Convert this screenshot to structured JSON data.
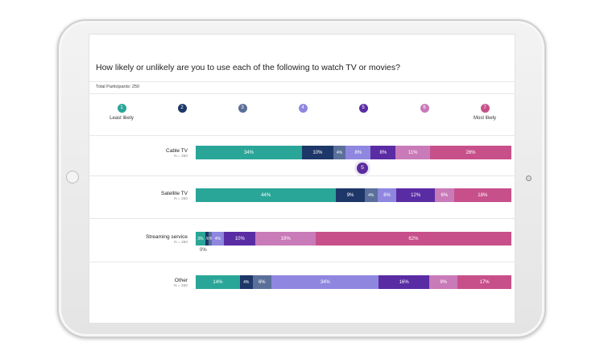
{
  "question": "How likely or unlikely are you to use each of the following to watch TV or movies?",
  "participants": "Total Participants: 250",
  "scale": [
    {
      "num": "1",
      "label": "Least likely",
      "color": "#2aa698"
    },
    {
      "num": "2",
      "label": "",
      "color": "#1d3768"
    },
    {
      "num": "3",
      "label": "",
      "color": "#5a6f99"
    },
    {
      "num": "4",
      "label": "",
      "color": "#8f86e0"
    },
    {
      "num": "5",
      "label": "",
      "color": "#5a2ca4"
    },
    {
      "num": "6",
      "label": "",
      "color": "#c97ab8"
    },
    {
      "num": "7",
      "label": "Most likely",
      "color": "#c7508a"
    }
  ],
  "tooltip": "5",
  "chart_data": {
    "type": "bar",
    "orientation": "horizontal-stacked-100",
    "categories": [
      "Cable TV",
      "Satellite TV",
      "Streaming service",
      "Other"
    ],
    "n_labels": [
      "N = 250",
      "N = 250",
      "N = 250",
      "N = 250"
    ],
    "series": [
      {
        "name": "1",
        "values": [
          34,
          44,
          3,
          14
        ],
        "labels": [
          "34%",
          "44%",
          "3%",
          "14%"
        ]
      },
      {
        "name": "2",
        "values": [
          10,
          9,
          1,
          4
        ],
        "labels": [
          "10%",
          "9%",
          "1%",
          "4%"
        ]
      },
      {
        "name": "3",
        "values": [
          4,
          4,
          1,
          6
        ],
        "labels": [
          "4%",
          "4%",
          "1%",
          "6%"
        ]
      },
      {
        "name": "4",
        "values": [
          8,
          6,
          4,
          34
        ],
        "labels": [
          "8%",
          "6%",
          "4%",
          "34%"
        ]
      },
      {
        "name": "5",
        "values": [
          8,
          12,
          10,
          16
        ],
        "labels": [
          "8%",
          "12%",
          "10%",
          "16%"
        ]
      },
      {
        "name": "6",
        "values": [
          11,
          6,
          19,
          9
        ],
        "labels": [
          "11%",
          "6%",
          "19%",
          "9%"
        ]
      },
      {
        "name": "7",
        "values": [
          26,
          18,
          62,
          17
        ],
        "labels": [
          "26%",
          "18%",
          "62%",
          "17%"
        ]
      }
    ],
    "notes": [
      {
        "row": 2,
        "text": "0%"
      }
    ]
  }
}
